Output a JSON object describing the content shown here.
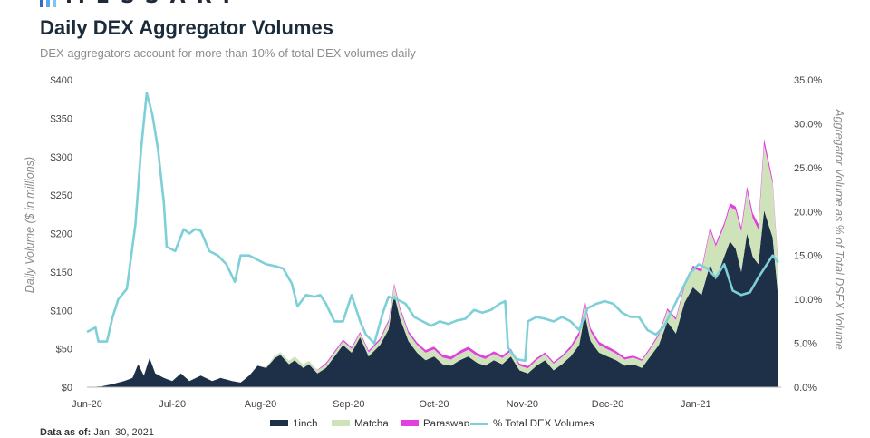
{
  "header": {
    "brand": "MESSARI",
    "title": "Daily DEX Aggregator Volumes",
    "subtitle": "DEX aggregators account for more than 10% of total DEX volumes daily",
    "footnote_label": "Data as of:",
    "footnote_date": "Jan. 30, 2021"
  },
  "colors": {
    "inch1": "#1e3047",
    "matcha": "#cfe3bb",
    "paraswap": "#e23fe0",
    "pct_line": "#7dcfd8"
  },
  "chart_data": {
    "type": "area",
    "title": "Daily DEX Aggregator Volumes",
    "ylabel": "Daily Volume ($ in millions)",
    "y2label": "Aggregator Volume as % of Total DSEX Volume",
    "ylim": [
      0,
      400
    ],
    "y2lim": [
      0,
      35
    ],
    "y_ticks": [
      "$0",
      "$50",
      "$100",
      "$150",
      "$200",
      "$250",
      "$300",
      "$350",
      "$400"
    ],
    "y2_ticks": [
      "0.0%",
      "5.0%",
      "10.0%",
      "15.0%",
      "20.0%",
      "25.0%",
      "30.0%",
      "35.0%"
    ],
    "x_ticks": [
      {
        "date": "2020-06-01",
        "label": "Jun-20"
      },
      {
        "date": "2020-07-01",
        "label": "Jul-20"
      },
      {
        "date": "2020-08-01",
        "label": "Aug-20"
      },
      {
        "date": "2020-09-01",
        "label": "Sep-20"
      },
      {
        "date": "2020-10-01",
        "label": "Oct-20"
      },
      {
        "date": "2020-11-01",
        "label": "Nov-20"
      },
      {
        "date": "2020-12-01",
        "label": "Dec-20"
      },
      {
        "date": "2021-01-01",
        "label": "Jan-21"
      }
    ],
    "legend": [
      "1inch",
      "Matcha",
      "Paraswap",
      "% Total DEX Volumes"
    ],
    "legend_position": "bottom",
    "grid": false,
    "series": [
      {
        "name": "1inch",
        "kind": "stacked-area",
        "points": [
          [
            "2020-06-01",
            0
          ],
          [
            "2020-06-06",
            1
          ],
          [
            "2020-06-10",
            4
          ],
          [
            "2020-06-14",
            8
          ],
          [
            "2020-06-17",
            12
          ],
          [
            "2020-06-19",
            30
          ],
          [
            "2020-06-21",
            15
          ],
          [
            "2020-06-23",
            38
          ],
          [
            "2020-06-25",
            18
          ],
          [
            "2020-06-28",
            12
          ],
          [
            "2020-07-01",
            8
          ],
          [
            "2020-07-04",
            18
          ],
          [
            "2020-07-07",
            8
          ],
          [
            "2020-07-11",
            15
          ],
          [
            "2020-07-15",
            8
          ],
          [
            "2020-07-18",
            12
          ],
          [
            "2020-07-22",
            8
          ],
          [
            "2020-07-25",
            6
          ],
          [
            "2020-07-28",
            15
          ],
          [
            "2020-07-31",
            28
          ],
          [
            "2020-08-03",
            25
          ],
          [
            "2020-08-06",
            38
          ],
          [
            "2020-08-08",
            42
          ],
          [
            "2020-08-11",
            30
          ],
          [
            "2020-08-13",
            35
          ],
          [
            "2020-08-16",
            25
          ],
          [
            "2020-08-18",
            30
          ],
          [
            "2020-08-21",
            18
          ],
          [
            "2020-08-24",
            25
          ],
          [
            "2020-08-27",
            40
          ],
          [
            "2020-08-30",
            55
          ],
          [
            "2020-09-02",
            45
          ],
          [
            "2020-09-05",
            65
          ],
          [
            "2020-09-08",
            40
          ],
          [
            "2020-09-12",
            55
          ],
          [
            "2020-09-15",
            75
          ],
          [
            "2020-09-17",
            120
          ],
          [
            "2020-09-19",
            90
          ],
          [
            "2020-09-22",
            60
          ],
          [
            "2020-09-25",
            45
          ],
          [
            "2020-09-28",
            35
          ],
          [
            "2020-10-01",
            40
          ],
          [
            "2020-10-04",
            30
          ],
          [
            "2020-10-07",
            28
          ],
          [
            "2020-10-10",
            35
          ],
          [
            "2020-10-13",
            40
          ],
          [
            "2020-10-16",
            32
          ],
          [
            "2020-10-19",
            28
          ],
          [
            "2020-10-22",
            35
          ],
          [
            "2020-10-25",
            30
          ],
          [
            "2020-10-28",
            40
          ],
          [
            "2020-10-31",
            22
          ],
          [
            "2020-11-03",
            18
          ],
          [
            "2020-11-06",
            28
          ],
          [
            "2020-11-09",
            35
          ],
          [
            "2020-11-12",
            22
          ],
          [
            "2020-11-15",
            30
          ],
          [
            "2020-11-18",
            40
          ],
          [
            "2020-11-21",
            55
          ],
          [
            "2020-11-23",
            95
          ],
          [
            "2020-11-25",
            60
          ],
          [
            "2020-11-28",
            45
          ],
          [
            "2020-12-01",
            40
          ],
          [
            "2020-12-04",
            35
          ],
          [
            "2020-12-07",
            28
          ],
          [
            "2020-12-10",
            30
          ],
          [
            "2020-12-13",
            25
          ],
          [
            "2020-12-16",
            40
          ],
          [
            "2020-12-19",
            55
          ],
          [
            "2020-12-22",
            85
          ],
          [
            "2020-12-25",
            70
          ],
          [
            "2020-12-28",
            110
          ],
          [
            "2020-12-31",
            130
          ],
          [
            "2021-01-03",
            120
          ],
          [
            "2021-01-06",
            160
          ],
          [
            "2021-01-08",
            140
          ],
          [
            "2021-01-11",
            170
          ],
          [
            "2021-01-13",
            190
          ],
          [
            "2021-01-15",
            180
          ],
          [
            "2021-01-17",
            150
          ],
          [
            "2021-01-19",
            200
          ],
          [
            "2021-01-21",
            170
          ],
          [
            "2021-01-23",
            160
          ],
          [
            "2021-01-25",
            230
          ],
          [
            "2021-01-28",
            195
          ],
          [
            "2021-01-30",
            115
          ]
        ]
      },
      {
        "name": "Matcha",
        "kind": "stacked-area",
        "points": [
          [
            "2020-06-01",
            0
          ],
          [
            "2020-07-31",
            0
          ],
          [
            "2020-08-06",
            3
          ],
          [
            "2020-08-13",
            5
          ],
          [
            "2020-08-21",
            4
          ],
          [
            "2020-08-30",
            5
          ],
          [
            "2020-09-05",
            5
          ],
          [
            "2020-09-12",
            6
          ],
          [
            "2020-09-17",
            12
          ],
          [
            "2020-09-22",
            10
          ],
          [
            "2020-09-28",
            10
          ],
          [
            "2020-10-07",
            8
          ],
          [
            "2020-10-16",
            9
          ],
          [
            "2020-10-25",
            8
          ],
          [
            "2020-10-31",
            6
          ],
          [
            "2020-11-09",
            8
          ],
          [
            "2020-11-18",
            10
          ],
          [
            "2020-11-23",
            14
          ],
          [
            "2020-11-28",
            10
          ],
          [
            "2020-12-07",
            8
          ],
          [
            "2020-12-16",
            10
          ],
          [
            "2020-12-22",
            15
          ],
          [
            "2020-12-28",
            20
          ],
          [
            "2021-01-03",
            30
          ],
          [
            "2021-01-06",
            45
          ],
          [
            "2021-01-11",
            40
          ],
          [
            "2021-01-15",
            50
          ],
          [
            "2021-01-19",
            55
          ],
          [
            "2021-01-23",
            45
          ],
          [
            "2021-01-25",
            85
          ],
          [
            "2021-01-28",
            70
          ],
          [
            "2021-01-30",
            40
          ]
        ]
      },
      {
        "name": "Paraswap",
        "kind": "stacked-area",
        "points": [
          [
            "2020-06-01",
            0
          ],
          [
            "2020-08-20",
            0
          ],
          [
            "2020-08-24",
            2
          ],
          [
            "2020-09-05",
            2
          ],
          [
            "2020-09-17",
            3
          ],
          [
            "2020-10-13",
            4
          ],
          [
            "2020-10-28",
            3
          ],
          [
            "2020-11-15",
            2
          ],
          [
            "2020-11-21",
            5
          ],
          [
            "2020-12-13",
            2
          ],
          [
            "2020-12-28",
            3
          ],
          [
            "2021-01-11",
            4
          ],
          [
            "2021-01-19",
            6
          ],
          [
            "2021-01-25",
            8
          ],
          [
            "2021-01-30",
            3
          ]
        ]
      },
      {
        "name": "% Total DEX Volumes",
        "kind": "line",
        "axis": "right",
        "points": [
          [
            "2020-06-01",
            6.3
          ],
          [
            "2020-06-04",
            6.8
          ],
          [
            "2020-06-05",
            5.2
          ],
          [
            "2020-06-08",
            5.2
          ],
          [
            "2020-06-10",
            8.0
          ],
          [
            "2020-06-12",
            10.0
          ],
          [
            "2020-06-15",
            11.2
          ],
          [
            "2020-06-18",
            18.5
          ],
          [
            "2020-06-20",
            27.0
          ],
          [
            "2020-06-22",
            33.5
          ],
          [
            "2020-06-24",
            31.0
          ],
          [
            "2020-06-26",
            27.0
          ],
          [
            "2020-06-28",
            21.0
          ],
          [
            "2020-06-29",
            16.0
          ],
          [
            "2020-07-02",
            15.5
          ],
          [
            "2020-07-05",
            18.0
          ],
          [
            "2020-07-07",
            17.5
          ],
          [
            "2020-07-09",
            18.0
          ],
          [
            "2020-07-11",
            17.8
          ],
          [
            "2020-07-14",
            15.5
          ],
          [
            "2020-07-17",
            15.0
          ],
          [
            "2020-07-20",
            14.0
          ],
          [
            "2020-07-23",
            12.0
          ],
          [
            "2020-07-25",
            15.0
          ],
          [
            "2020-07-28",
            15.0
          ],
          [
            "2020-07-31",
            14.5
          ],
          [
            "2020-08-03",
            14.0
          ],
          [
            "2020-08-06",
            13.8
          ],
          [
            "2020-08-09",
            13.5
          ],
          [
            "2020-08-12",
            11.8
          ],
          [
            "2020-08-14",
            9.2
          ],
          [
            "2020-08-17",
            10.5
          ],
          [
            "2020-08-20",
            10.3
          ],
          [
            "2020-08-22",
            10.5
          ],
          [
            "2020-08-24",
            9.5
          ],
          [
            "2020-08-27",
            7.5
          ],
          [
            "2020-08-30",
            7.5
          ],
          [
            "2020-09-02",
            10.5
          ],
          [
            "2020-09-05",
            7.5
          ],
          [
            "2020-09-07",
            6.0
          ],
          [
            "2020-09-10",
            5.0
          ],
          [
            "2020-09-13",
            8.5
          ],
          [
            "2020-09-15",
            10.3
          ],
          [
            "2020-09-18",
            10.0
          ],
          [
            "2020-09-21",
            9.5
          ],
          [
            "2020-09-24",
            8.0
          ],
          [
            "2020-09-27",
            7.5
          ],
          [
            "2020-09-30",
            7.0
          ],
          [
            "2020-10-03",
            7.5
          ],
          [
            "2020-10-06",
            7.2
          ],
          [
            "2020-10-09",
            7.6
          ],
          [
            "2020-10-12",
            7.8
          ],
          [
            "2020-10-15",
            8.8
          ],
          [
            "2020-10-18",
            8.5
          ],
          [
            "2020-10-21",
            8.8
          ],
          [
            "2020-10-24",
            9.5
          ],
          [
            "2020-10-26",
            9.8
          ],
          [
            "2020-10-27",
            4.5
          ],
          [
            "2020-10-30",
            3.2
          ],
          [
            "2020-11-02",
            3.0
          ],
          [
            "2020-11-03",
            7.5
          ],
          [
            "2020-11-06",
            8.0
          ],
          [
            "2020-11-09",
            7.8
          ],
          [
            "2020-11-12",
            7.5
          ],
          [
            "2020-11-15",
            8.0
          ],
          [
            "2020-11-18",
            7.5
          ],
          [
            "2020-11-21",
            6.5
          ],
          [
            "2020-11-24",
            9.0
          ],
          [
            "2020-11-27",
            9.5
          ],
          [
            "2020-11-30",
            9.8
          ],
          [
            "2020-12-03",
            9.5
          ],
          [
            "2020-12-06",
            8.5
          ],
          [
            "2020-12-09",
            8.0
          ],
          [
            "2020-12-12",
            8.0
          ],
          [
            "2020-12-15",
            6.5
          ],
          [
            "2020-12-18",
            6.0
          ],
          [
            "2020-12-21",
            7.0
          ],
          [
            "2020-12-24",
            9.0
          ],
          [
            "2020-12-27",
            11.0
          ],
          [
            "2020-12-30",
            13.0
          ],
          [
            "2021-01-02",
            14.0
          ],
          [
            "2021-01-05",
            13.5
          ],
          [
            "2021-01-08",
            12.5
          ],
          [
            "2021-01-11",
            14.0
          ],
          [
            "2021-01-14",
            11.0
          ],
          [
            "2021-01-17",
            10.5
          ],
          [
            "2021-01-20",
            10.8
          ],
          [
            "2021-01-23",
            12.5
          ],
          [
            "2021-01-26",
            14.0
          ],
          [
            "2021-01-28",
            15.0
          ],
          [
            "2021-01-30",
            14.2
          ]
        ]
      }
    ]
  }
}
